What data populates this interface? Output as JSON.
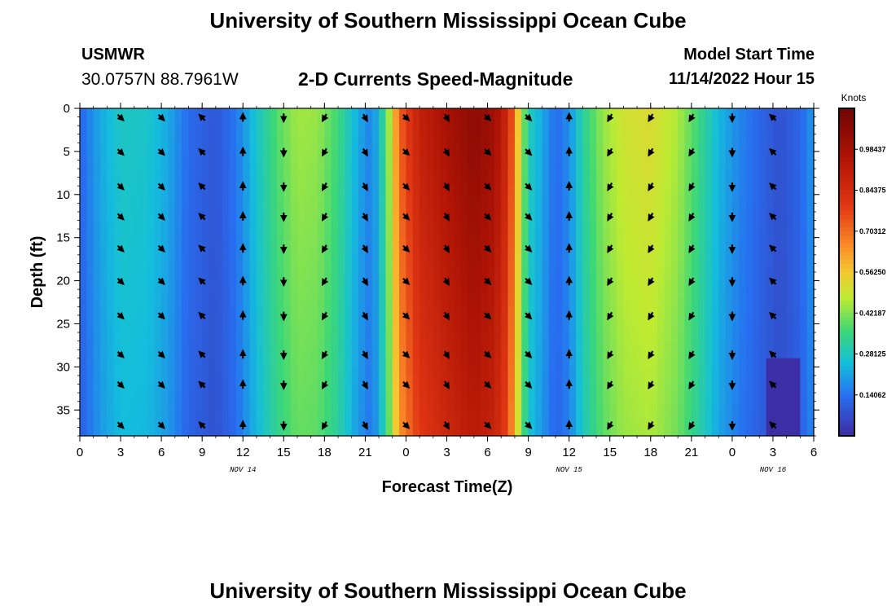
{
  "header": {
    "title": "University of Southern Mississippi Ocean Cube",
    "station": "USMWR",
    "coords": "30.0757N  88.7961W",
    "model_start_label": "Model Start Time",
    "model_start_value": "11/14/2022 Hour 15",
    "repeat_title": "University of Southern Mississippi Ocean Cube"
  },
  "chart_data": {
    "type": "heatmap",
    "title": "2-D Currents Speed-Magnitude",
    "xlabel": "Forecast Time(Z)",
    "ylabel": "Depth (ft)",
    "x_ticks": [
      "0",
      "3",
      "6",
      "9",
      "12",
      "15",
      "18",
      "21",
      "0",
      "3",
      "6",
      "9",
      "12",
      "15",
      "18",
      "21",
      "0",
      "3",
      "6"
    ],
    "x_range_hours": [
      0,
      54
    ],
    "day_labels": [
      {
        "label": "NOV 14",
        "hour": 12
      },
      {
        "label": "NOV 15",
        "hour": 36
      },
      {
        "label": "NOV 16",
        "hour": 51
      }
    ],
    "y_ticks": [
      0,
      5,
      10,
      15,
      20,
      25,
      30,
      35
    ],
    "ylim": [
      0,
      38
    ],
    "y_inverted": true,
    "colorbar": {
      "units": "Knots",
      "ticks": [
        "0.14062",
        "0.28125",
        "0.42187",
        "0.56250",
        "0.70312",
        "0.84375",
        "0.98437"
      ],
      "range": [
        0.0,
        1.125
      ]
    },
    "speed_by_hour": [
      {
        "hour": 0,
        "speed": 0.12
      },
      {
        "hour": 1.5,
        "speed": 0.22
      },
      {
        "hour": 3,
        "speed": 0.28
      },
      {
        "hour": 5,
        "speed": 0.27
      },
      {
        "hour": 6.5,
        "speed": 0.22
      },
      {
        "hour": 8,
        "speed": 0.13
      },
      {
        "hour": 10,
        "speed": 0.09
      },
      {
        "hour": 11.5,
        "speed": 0.15
      },
      {
        "hour": 13,
        "speed": 0.27
      },
      {
        "hour": 14.5,
        "speed": 0.38
      },
      {
        "hour": 16,
        "speed": 0.45
      },
      {
        "hour": 17.5,
        "speed": 0.44
      },
      {
        "hour": 19,
        "speed": 0.36
      },
      {
        "hour": 20.5,
        "speed": 0.22
      },
      {
        "hour": 21.5,
        "speed": 0.16
      },
      {
        "hour": 22.5,
        "speed": 0.36
      },
      {
        "hour": 23.5,
        "speed": 0.72
      },
      {
        "hour": 25,
        "speed": 0.9
      },
      {
        "hour": 27,
        "speed": 0.98
      },
      {
        "hour": 29,
        "speed": 1.05
      },
      {
        "hour": 30.5,
        "speed": 1.0
      },
      {
        "hour": 31.5,
        "speed": 0.86
      },
      {
        "hour": 32.3,
        "speed": 0.55
      },
      {
        "hour": 33,
        "speed": 0.3
      },
      {
        "hour": 34,
        "speed": 0.22
      },
      {
        "hour": 35,
        "speed": 0.13
      },
      {
        "hour": 36,
        "speed": 0.18
      },
      {
        "hour": 37,
        "speed": 0.32
      },
      {
        "hour": 38.5,
        "speed": 0.44
      },
      {
        "hour": 40,
        "speed": 0.5
      },
      {
        "hour": 42,
        "speed": 0.52
      },
      {
        "hour": 44,
        "speed": 0.46
      },
      {
        "hour": 45.5,
        "speed": 0.36
      },
      {
        "hour": 47,
        "speed": 0.24
      },
      {
        "hour": 48.5,
        "speed": 0.17
      },
      {
        "hour": 50,
        "speed": 0.12
      },
      {
        "hour": 51.5,
        "speed": 0.08
      },
      {
        "hour": 53,
        "speed": 0.12
      },
      {
        "hour": 54,
        "speed": 0.2
      }
    ],
    "vector_hours": [
      3,
      6,
      9,
      12,
      15,
      18,
      21,
      24,
      27,
      30,
      33,
      36,
      39,
      42,
      45,
      48,
      51
    ],
    "vector_depths": [
      0.5,
      4.5,
      8.5,
      12,
      15.7,
      19.5,
      23.5,
      28,
      31.5,
      36.2
    ],
    "vector_directions_deg": [
      45,
      45,
      225,
      270,
      90,
      120,
      60,
      45,
      60,
      45,
      45,
      270,
      120,
      120,
      120,
      90,
      225
    ]
  }
}
